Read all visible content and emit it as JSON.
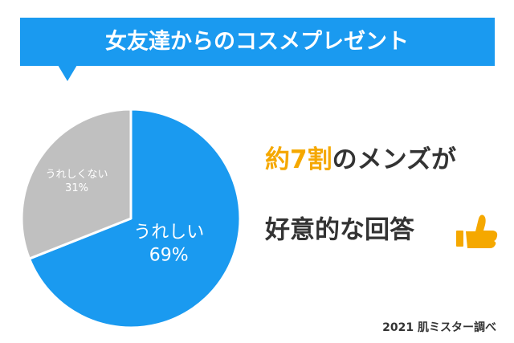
{
  "chart_data": {
    "type": "pie",
    "title": "女友達からのコスメプレゼント",
    "categories": [
      "うれしい",
      "うれしくない"
    ],
    "values": [
      69,
      31
    ],
    "value_labels": [
      "69%",
      "31%"
    ],
    "colors": [
      "#1a9af0",
      "#c0c0c0"
    ],
    "headline_highlight": "約7割",
    "headline_rest": "のメンズが",
    "headline_line2": "好意的な回答",
    "source": "2021 肌ミスター調べ"
  }
}
